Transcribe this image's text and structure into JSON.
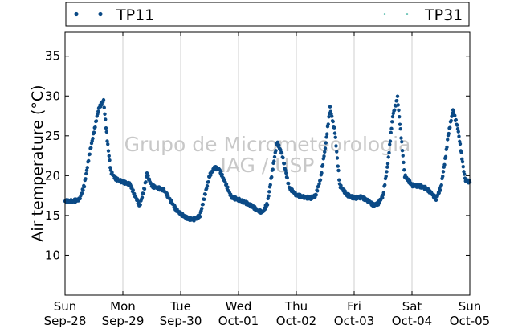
{
  "chart_data": {
    "type": "scatter",
    "ylabel": "Air temperature (°C)",
    "ylim": [
      5,
      38
    ],
    "yticks": [
      10,
      15,
      20,
      25,
      30,
      35
    ],
    "xlim": [
      "2014-09-28T00:00",
      "2014-10-05T00:00"
    ],
    "xticks": [
      {
        "day": "Sun",
        "date": "Sep-28"
      },
      {
        "day": "Mon",
        "date": "Sep-29"
      },
      {
        "day": "Tue",
        "date": "Sep-30"
      },
      {
        "day": "Wed",
        "date": "Oct-01"
      },
      {
        "day": "Thu",
        "date": "Oct-02"
      },
      {
        "day": "Fri",
        "date": "Oct-03"
      },
      {
        "day": "Sat",
        "date": "Oct-04"
      },
      {
        "day": "Sun",
        "date": "Oct-05"
      }
    ],
    "grid": "vertical",
    "legend_position": "top",
    "watermark": [
      "Grupo de Micrometeorologia",
      "IAG / USP"
    ],
    "series": [
      {
        "name": "TP11",
        "color": "#0b4a86",
        "x": [
          "2014-09-28T00:00",
          "2014-09-28T03:00",
          "2014-09-28T06:00",
          "2014-09-28T08:00",
          "2014-09-28T10:00",
          "2014-09-28T12:00",
          "2014-09-28T14:00",
          "2014-09-28T16:00",
          "2014-09-28T17:30",
          "2014-09-28T19:00",
          "2014-09-28T21:00",
          "2014-09-29T00:00",
          "2014-09-29T03:00",
          "2014-09-29T05:00",
          "2014-09-29T07:00",
          "2014-09-29T09:00",
          "2014-09-29T10:00",
          "2014-09-29T12:00",
          "2014-09-29T14:00",
          "2014-09-29T17:00",
          "2014-09-29T20:00",
          "2014-09-29T22:00",
          "2014-09-30T00:00",
          "2014-09-30T03:00",
          "2014-09-30T06:00",
          "2014-09-30T08:00",
          "2014-09-30T10:00",
          "2014-09-30T12:00",
          "2014-09-30T14:00",
          "2014-09-30T16:00",
          "2014-09-30T18:00",
          "2014-09-30T21:00",
          "2014-10-01T00:00",
          "2014-10-01T03:00",
          "2014-10-01T06:00",
          "2014-10-01T08:00",
          "2014-10-01T10:00",
          "2014-10-01T12:00",
          "2014-10-01T14:00",
          "2014-10-01T16:00",
          "2014-10-01T18:00",
          "2014-10-01T21:00",
          "2014-10-02T00:00",
          "2014-10-02T03:00",
          "2014-10-02T06:00",
          "2014-10-02T08:00",
          "2014-10-02T10:00",
          "2014-10-02T12:00",
          "2014-10-02T14:00",
          "2014-10-02T16:00",
          "2014-10-02T18:00",
          "2014-10-02T21:00",
          "2014-10-03T00:00",
          "2014-10-03T03:00",
          "2014-10-03T06:00",
          "2014-10-03T08:00",
          "2014-10-03T10:00",
          "2014-10-03T12:00",
          "2014-10-03T14:00",
          "2014-10-03T16:00",
          "2014-10-03T18:00",
          "2014-10-03T21:00",
          "2014-10-04T00:00",
          "2014-10-04T03:00",
          "2014-10-04T06:00",
          "2014-10-04T08:00",
          "2014-10-04T10:00",
          "2014-10-04T12:00",
          "2014-10-04T14:00",
          "2014-10-04T15:00",
          "2014-10-04T17:00",
          "2014-10-04T19:00",
          "2014-10-04T22:00",
          "2014-10-05T00:00"
        ],
        "y": [
          16.8,
          16.8,
          17.0,
          18.8,
          22.5,
          25.5,
          28.5,
          29.4,
          24.5,
          20.5,
          19.6,
          19.2,
          18.9,
          17.5,
          16.2,
          18.5,
          20.2,
          18.7,
          18.5,
          18.2,
          16.8,
          15.8,
          15.2,
          14.6,
          14.5,
          15.0,
          17.5,
          20.0,
          21.0,
          20.8,
          19.5,
          17.3,
          17.0,
          16.6,
          16.1,
          15.6,
          15.4,
          16.5,
          20.5,
          24.2,
          22.8,
          18.5,
          17.6,
          17.3,
          17.2,
          17.5,
          19.5,
          23.5,
          28.5,
          25.5,
          18.8,
          17.6,
          17.2,
          17.3,
          16.8,
          16.3,
          16.5,
          17.5,
          21.5,
          27.5,
          29.8,
          20.0,
          18.8,
          18.7,
          18.4,
          17.8,
          17.1,
          18.5,
          22.5,
          25.0,
          28.2,
          26.0,
          19.5,
          19.2
        ]
      },
      {
        "name": "TP31",
        "color": "#3aaf9e",
        "x": [],
        "y": []
      }
    ]
  }
}
